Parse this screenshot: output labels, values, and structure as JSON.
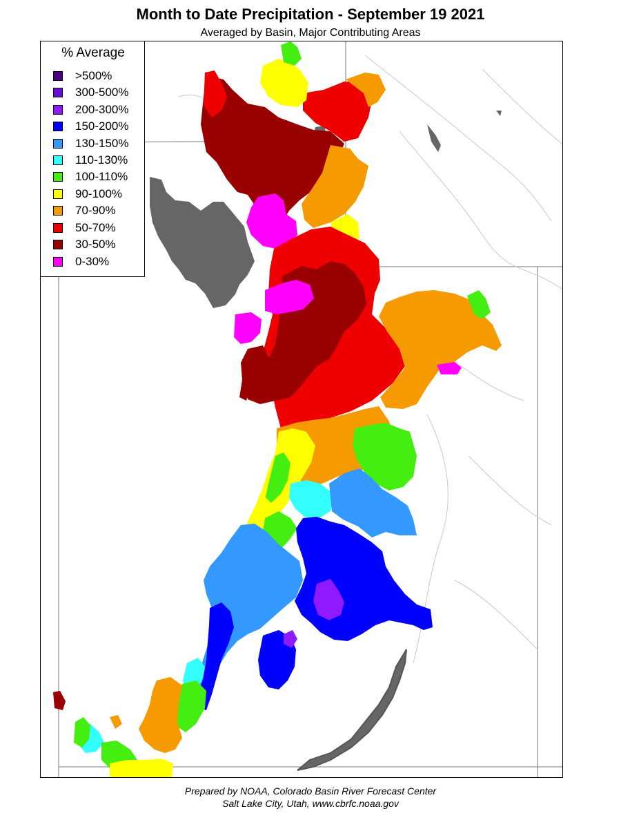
{
  "title": "Month to Date Precipitation - September 19 2021",
  "subtitle": "Averaged by Basin, Major Contributing Areas",
  "legend": {
    "title": "% Average",
    "items": [
      {
        "label": ">500%",
        "color": "#4b0082"
      },
      {
        "label": "300-500%",
        "color": "#6a0dd9"
      },
      {
        "label": "200-300%",
        "color": "#8f1aff"
      },
      {
        "label": "150-200%",
        "color": "#0000ff"
      },
      {
        "label": "130-150%",
        "color": "#3399ff"
      },
      {
        "label": "110-130%",
        "color": "#33ffff"
      },
      {
        "label": "100-110%",
        "color": "#44ee11"
      },
      {
        "label": "90-100%",
        "color": "#ffff00"
      },
      {
        "label": "70-90%",
        "color": "#f59a00"
      },
      {
        "label": "50-70%",
        "color": "#ee0000"
      },
      {
        "label": "30-50%",
        "color": "#990000"
      },
      {
        "label": "0-30%",
        "color": "#ff00ff"
      }
    ]
  },
  "colors": {
    "lake": "#666666",
    "border": "#777777",
    "river": "#bbbbbb"
  },
  "footer": {
    "line1": "Prepared by NOAA, Colorado Basin River Forecast Center",
    "line2": "Salt Lake City, Utah, www.cbrfc.noaa.gov"
  }
}
